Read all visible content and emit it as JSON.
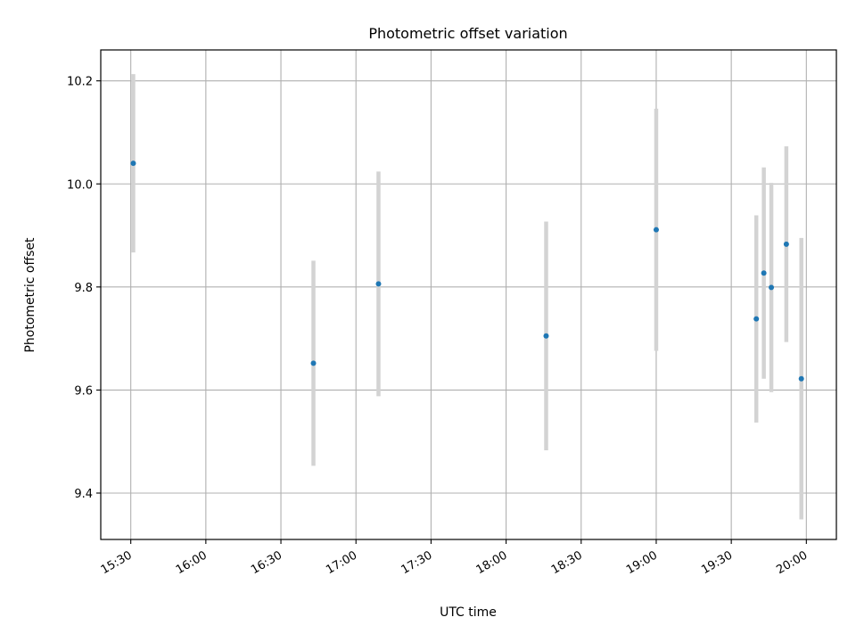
{
  "chart_data": {
    "type": "scatter",
    "title": "Photometric offset variation",
    "xlabel": "UTC time",
    "ylabel": "Photometric offset",
    "x_is_time": true,
    "xlim": [
      "15:18",
      "20:12"
    ],
    "ylim": [
      9.31,
      10.26
    ],
    "xticks": [
      "15:30",
      "16:00",
      "16:30",
      "17:00",
      "17:30",
      "18:00",
      "18:30",
      "19:00",
      "19:30",
      "20:00"
    ],
    "yticks": [
      "9.4",
      "9.6",
      "9.8",
      "10.0",
      "10.2"
    ],
    "grid": true,
    "colors": {
      "point": "#1f77b4",
      "errorbar": "#d3d3d3",
      "grid": "#b0b0b0"
    },
    "points": [
      {
        "x": "15:31",
        "y": 10.04,
        "err": 0.173
      },
      {
        "x": "16:43",
        "y": 9.652,
        "err": 0.199
      },
      {
        "x": "17:09",
        "y": 9.806,
        "err": 0.218
      },
      {
        "x": "18:16",
        "y": 9.705,
        "err": 0.222
      },
      {
        "x": "19:00",
        "y": 9.911,
        "err": 0.235
      },
      {
        "x": "19:40",
        "y": 9.738,
        "err": 0.201
      },
      {
        "x": "19:43",
        "y": 9.827,
        "err": 0.205
      },
      {
        "x": "19:46",
        "y": 9.799,
        "err": 0.203
      },
      {
        "x": "19:52",
        "y": 9.883,
        "err": 0.19
      },
      {
        "x": "19:58",
        "y": 9.622,
        "err": 0.273
      }
    ]
  }
}
